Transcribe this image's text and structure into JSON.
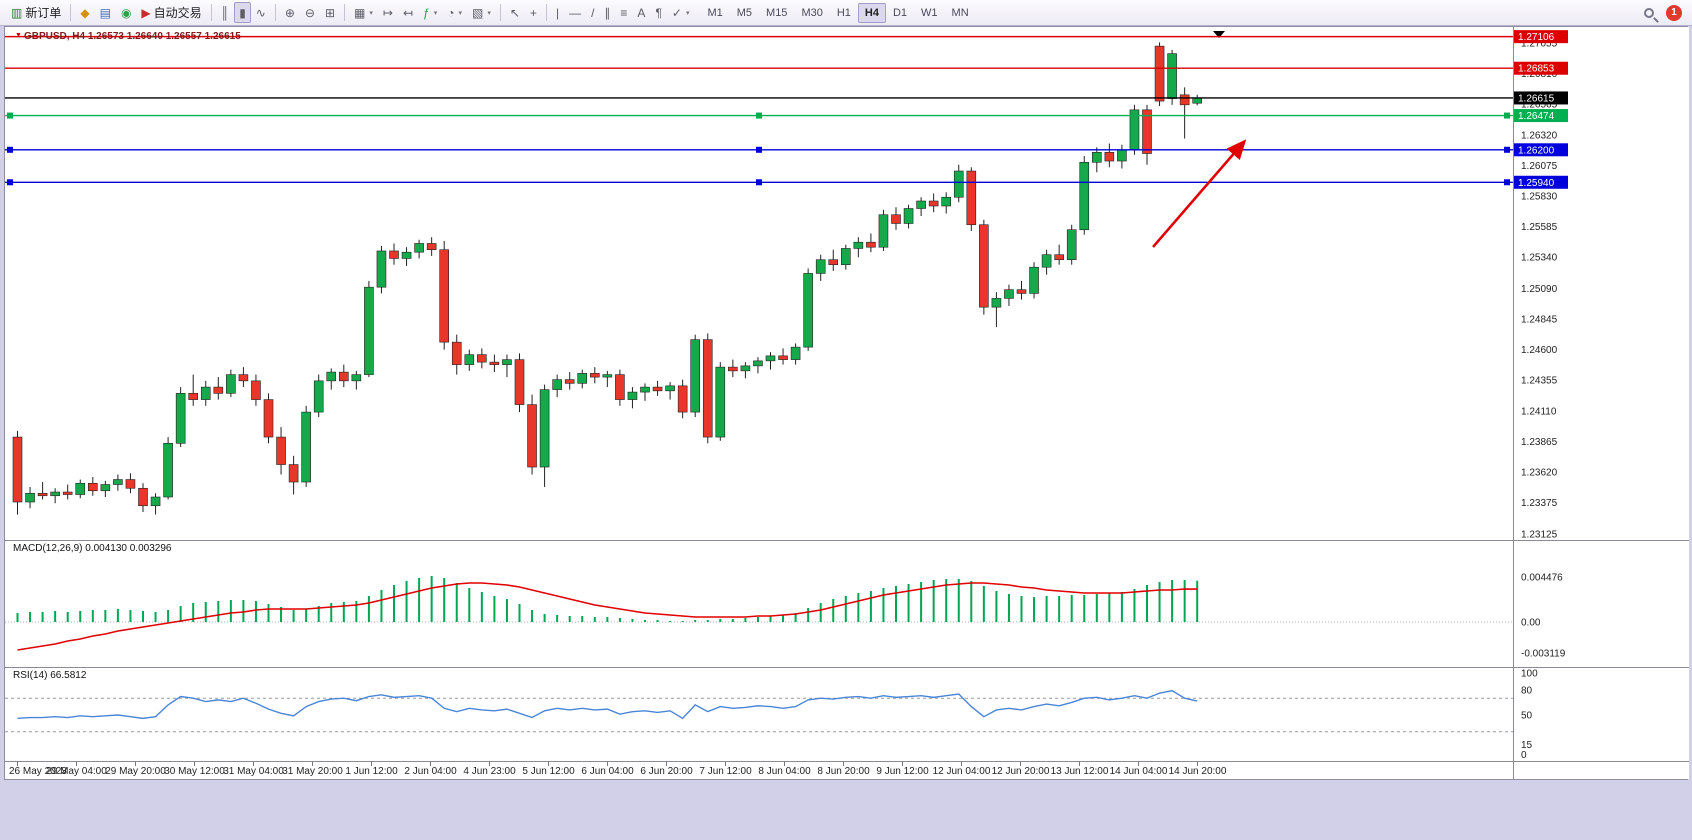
{
  "toolbar": {
    "groups": [
      {
        "buttons": [
          {
            "name": "new-order-button",
            "glyph": "▥",
            "glyph_color": "#2e7d32",
            "label": "新订单"
          }
        ]
      },
      {
        "buttons": [
          {
            "name": "charts-button",
            "glyph": "◆",
            "glyph_color": "#d4900f"
          },
          {
            "name": "profiles-button",
            "glyph": "▤",
            "glyph_color": "#3f6bb5"
          },
          {
            "name": "alerts-button",
            "glyph": "◉",
            "glyph_color": "#2f9e44"
          },
          {
            "name": "auto-trading-button",
            "glyph": "▶",
            "glyph_color": "#c92a2a",
            "label": "自动交易"
          }
        ]
      },
      {
        "buttons": [
          {
            "name": "bar-chart-button",
            "glyph": "║"
          },
          {
            "name": "candlestick-chart-button",
            "glyph": "▮",
            "active": true
          },
          {
            "name": "line-chart-button",
            "glyph": "∿"
          }
        ]
      },
      {
        "buttons": [
          {
            "name": "zoom-in-button",
            "glyph": "⊕"
          },
          {
            "name": "zoom-out-button",
            "glyph": "⊖"
          },
          {
            "name": "tile-windows-button",
            "glyph": "⊞"
          }
        ]
      },
      {
        "buttons": [
          {
            "name": "chart-layout-button",
            "glyph": "▦",
            "caret": true
          },
          {
            "name": "auto-scroll-button",
            "glyph": "↦"
          },
          {
            "name": "chart-shift-button",
            "glyph": "↤"
          },
          {
            "name": "indicators-button",
            "glyph": "ƒ",
            "glyph_color": "#2f9e44",
            "caret": true
          },
          {
            "name": "periods-button",
            "glyph": "◔",
            "caret": true
          },
          {
            "name": "templates-button",
            "glyph": "▧",
            "caret": true
          }
        ]
      },
      {
        "buttons": [
          {
            "name": "cursor-button",
            "glyph": "↖"
          },
          {
            "name": "crosshair-button",
            "glyph": "+"
          }
        ]
      },
      {
        "buttons": [
          {
            "name": "vertical-line-button",
            "glyph": "|"
          },
          {
            "name": "horizontal-line-button",
            "glyph": "—"
          },
          {
            "name": "trendline-button",
            "glyph": "/"
          },
          {
            "name": "channel-button",
            "glyph": "∥"
          },
          {
            "name": "fibonacci-button",
            "glyph": "≡"
          },
          {
            "name": "text-button",
            "glyph": "A"
          },
          {
            "name": "label-button",
            "glyph": "¶"
          },
          {
            "name": "shapes-button",
            "glyph": "✓",
            "caret": true
          }
        ]
      }
    ],
    "timeframes": [
      {
        "label": "M1"
      },
      {
        "label": "M5"
      },
      {
        "label": "M15"
      },
      {
        "label": "M30"
      },
      {
        "label": "H1"
      },
      {
        "label": "H4",
        "active": true
      },
      {
        "label": "D1"
      },
      {
        "label": "W1"
      },
      {
        "label": "MN"
      }
    ],
    "notification_count": "1"
  },
  "chart": {
    "symbol_title": "GBPUSD, H4 1.26573 1.26640 1.26557 1.26615",
    "macd_label": "MACD(12,26,9) 0.004130 0.003296",
    "rsi_label": "RSI(14) 66.5812"
  },
  "chart_data": {
    "type": "candlestick",
    "symbol": "GBPUSD",
    "timeframe": "H4",
    "ohlc_current": {
      "open": 1.26573,
      "high": 1.2664,
      "low": 1.26557,
      "close": 1.26615
    },
    "y_ticks": [
      "1.27055",
      "1.26810",
      "1.26565",
      "1.26320",
      "1.26075",
      "1.25830",
      "1.25585",
      "1.25340",
      "1.25090",
      "1.24845",
      "1.24600",
      "1.24355",
      "1.24110",
      "1.23865",
      "1.23620",
      "1.23375",
      "1.23125"
    ],
    "x_labels": [
      "26 May 2023",
      "29 May 04:00",
      "29 May 20:00",
      "30 May 12:00",
      "31 May 04:00",
      "31 May 20:00",
      "1 Jun 12:00",
      "2 Jun 04:00",
      "4 Jun 23:00",
      "5 Jun 12:00",
      "6 Jun 04:00",
      "6 Jun 20:00",
      "7 Jun 12:00",
      "8 Jun 04:00",
      "8 Jun 20:00",
      "9 Jun 12:00",
      "12 Jun 04:00",
      "12 Jun 20:00",
      "13 Jun 12:00",
      "14 Jun 04:00",
      "14 Jun 20:00"
    ],
    "hlines": [
      {
        "price": 1.27106,
        "color": "#dd0000",
        "label": "1.27106",
        "handles": false,
        "is_current": false
      },
      {
        "price": 1.26853,
        "color": "#dd0000",
        "label": "1.26853",
        "handles": false,
        "is_current": false
      },
      {
        "price": 1.26615,
        "color": "#000000",
        "label": "1.26615",
        "handles": false,
        "is_current": true
      },
      {
        "price": 1.26474,
        "color": "#00b050",
        "label": "1.26474",
        "handles": true,
        "is_current": false
      },
      {
        "price": 1.262,
        "color": "#0000dd",
        "label": "1.26200",
        "handles": true,
        "is_current": false
      },
      {
        "price": 1.2594,
        "color": "#0000dd",
        "label": "1.25940",
        "handles": true,
        "is_current": false
      }
    ],
    "candles": [
      [
        1.239,
        1.2395,
        1.2328,
        1.2338
      ],
      [
        1.2338,
        1.235,
        1.2333,
        1.2345
      ],
      [
        1.2345,
        1.2354,
        1.234,
        1.2343
      ],
      [
        1.2343,
        1.2349,
        1.2337,
        1.2346
      ],
      [
        1.2346,
        1.2352,
        1.234,
        1.2344
      ],
      [
        1.2344,
        1.2356,
        1.2341,
        1.2353
      ],
      [
        1.2353,
        1.2358,
        1.2343,
        1.2347
      ],
      [
        1.2347,
        1.2355,
        1.2342,
        1.2352
      ],
      [
        1.2352,
        1.236,
        1.2347,
        1.2356
      ],
      [
        1.2356,
        1.2361,
        1.2345,
        1.2349
      ],
      [
        1.2349,
        1.2353,
        1.233,
        1.2335
      ],
      [
        1.2335,
        1.2345,
        1.2328,
        1.2342
      ],
      [
        1.2342,
        1.239,
        1.234,
        1.2385
      ],
      [
        1.2385,
        1.243,
        1.2382,
        1.2425
      ],
      [
        1.2425,
        1.244,
        1.2415,
        1.242
      ],
      [
        1.242,
        1.2435,
        1.2415,
        1.243
      ],
      [
        1.243,
        1.2438,
        1.242,
        1.2425
      ],
      [
        1.2425,
        1.2444,
        1.2422,
        1.244
      ],
      [
        1.244,
        1.2446,
        1.243,
        1.2435
      ],
      [
        1.2435,
        1.244,
        1.2415,
        1.242
      ],
      [
        1.242,
        1.2425,
        1.2385,
        1.239
      ],
      [
        1.239,
        1.2398,
        1.236,
        1.2368
      ],
      [
        1.2368,
        1.2375,
        1.2344,
        1.2354
      ],
      [
        1.2354,
        1.2415,
        1.235,
        1.241
      ],
      [
        1.241,
        1.244,
        1.2406,
        1.2435
      ],
      [
        1.2435,
        1.2445,
        1.2428,
        1.2442
      ],
      [
        1.2442,
        1.2448,
        1.243,
        1.2435
      ],
      [
        1.2435,
        1.2443,
        1.2428,
        1.244
      ],
      [
        1.244,
        1.2515,
        1.2438,
        1.251
      ],
      [
        1.251,
        1.2543,
        1.2505,
        1.2539
      ],
      [
        1.2539,
        1.2545,
        1.2528,
        1.2533
      ],
      [
        1.2533,
        1.2542,
        1.2527,
        1.2538
      ],
      [
        1.2538,
        1.2548,
        1.2533,
        1.2545
      ],
      [
        1.2545,
        1.255,
        1.2535,
        1.254
      ],
      [
        1.254,
        1.2547,
        1.246,
        1.2466
      ],
      [
        1.2466,
        1.2472,
        1.244,
        1.2448
      ],
      [
        1.2448,
        1.246,
        1.2443,
        1.2456
      ],
      [
        1.2456,
        1.2461,
        1.2445,
        1.245
      ],
      [
        1.245,
        1.2456,
        1.2442,
        1.2448
      ],
      [
        1.2448,
        1.2456,
        1.2438,
        1.2452
      ],
      [
        1.2452,
        1.2457,
        1.241,
        1.2416
      ],
      [
        1.2416,
        1.2424,
        1.236,
        1.2366
      ],
      [
        1.2366,
        1.2432,
        1.235,
        1.2428
      ],
      [
        1.2428,
        1.244,
        1.2422,
        1.2436
      ],
      [
        1.2436,
        1.2442,
        1.2428,
        1.2433
      ],
      [
        1.2433,
        1.2444,
        1.2429,
        1.2441
      ],
      [
        1.2441,
        1.2446,
        1.2433,
        1.2438
      ],
      [
        1.2438,
        1.2443,
        1.243,
        1.244
      ],
      [
        1.244,
        1.2444,
        1.2415,
        1.242
      ],
      [
        1.242,
        1.243,
        1.2413,
        1.2426
      ],
      [
        1.2426,
        1.2433,
        1.2419,
        1.243
      ],
      [
        1.243,
        1.2435,
        1.2423,
        1.2427
      ],
      [
        1.2427,
        1.2434,
        1.242,
        1.2431
      ],
      [
        1.2431,
        1.2436,
        1.2405,
        1.241
      ],
      [
        1.241,
        1.2472,
        1.2406,
        1.2468
      ],
      [
        1.2468,
        1.2473,
        1.2385,
        1.239
      ],
      [
        1.239,
        1.245,
        1.2387,
        1.2446
      ],
      [
        1.2446,
        1.2452,
        1.2438,
        1.2443
      ],
      [
        1.2443,
        1.245,
        1.2437,
        1.2447
      ],
      [
        1.2447,
        1.2454,
        1.2441,
        1.2451
      ],
      [
        1.2451,
        1.2458,
        1.2444,
        1.2455
      ],
      [
        1.2455,
        1.2461,
        1.2448,
        1.2452
      ],
      [
        1.2452,
        1.2465,
        1.2448,
        1.2462
      ],
      [
        1.2462,
        1.2525,
        1.2459,
        1.2521
      ],
      [
        1.2521,
        1.2536,
        1.2515,
        1.2532
      ],
      [
        1.2532,
        1.254,
        1.2523,
        1.2528
      ],
      [
        1.2528,
        1.2544,
        1.2524,
        1.2541
      ],
      [
        1.2541,
        1.255,
        1.2534,
        1.2546
      ],
      [
        1.2546,
        1.2553,
        1.2538,
        1.2542
      ],
      [
        1.2542,
        1.2572,
        1.2539,
        1.2568
      ],
      [
        1.2568,
        1.2574,
        1.2556,
        1.2561
      ],
      [
        1.2561,
        1.2576,
        1.2557,
        1.2573
      ],
      [
        1.2573,
        1.2582,
        1.2567,
        1.2579
      ],
      [
        1.2579,
        1.2585,
        1.257,
        1.2575
      ],
      [
        1.2575,
        1.2586,
        1.2569,
        1.2582
      ],
      [
        1.2582,
        1.2608,
        1.2578,
        1.2603
      ],
      [
        1.2603,
        1.2606,
        1.2555,
        1.256
      ],
      [
        1.256,
        1.2564,
        1.2488,
        1.2494
      ],
      [
        1.2494,
        1.2506,
        1.2478,
        1.2501
      ],
      [
        1.2501,
        1.2512,
        1.2495,
        1.2508
      ],
      [
        1.2508,
        1.2515,
        1.25,
        1.2505
      ],
      [
        1.2505,
        1.253,
        1.2501,
        1.2526
      ],
      [
        1.2526,
        1.254,
        1.252,
        1.2536
      ],
      [
        1.2536,
        1.2544,
        1.2528,
        1.2532
      ],
      [
        1.2532,
        1.256,
        1.2528,
        1.2556
      ],
      [
        1.2556,
        1.2615,
        1.2552,
        1.261
      ],
      [
        1.261,
        1.2622,
        1.2602,
        1.2618
      ],
      [
        1.2618,
        1.2625,
        1.2606,
        1.2611
      ],
      [
        1.2611,
        1.2624,
        1.2605,
        1.262
      ],
      [
        1.262,
        1.2656,
        1.2616,
        1.2652
      ],
      [
        1.2652,
        1.2656,
        1.2608,
        1.2617
      ],
      [
        1.2703,
        1.2706,
        1.2655,
        1.2659
      ],
      [
        1.2661,
        1.27,
        1.2656,
        1.2697
      ],
      [
        1.2664,
        1.267,
        1.2629,
        1.2656
      ],
      [
        1.26573,
        1.2664,
        1.26557,
        1.26615
      ]
    ],
    "macd": {
      "label": "MACD(12,26,9) 0.004130 0.003296",
      "y_ticks": [
        0.004476,
        0,
        -0.003119
      ],
      "y_tick_labels": [
        "0.004476",
        "0.00",
        "-0.003119"
      ],
      "histogram": [
        0.0009,
        0.001,
        0.001,
        0.0011,
        0.001,
        0.0011,
        0.0012,
        0.0012,
        0.0013,
        0.0012,
        0.0011,
        0.001,
        0.0012,
        0.0016,
        0.0019,
        0.002,
        0.0021,
        0.0022,
        0.0022,
        0.0021,
        0.0018,
        0.0015,
        0.0012,
        0.0013,
        0.0016,
        0.0019,
        0.002,
        0.0021,
        0.0026,
        0.0032,
        0.0037,
        0.0041,
        0.0044,
        0.0046,
        0.0044,
        0.0039,
        0.0034,
        0.003,
        0.0026,
        0.0023,
        0.0018,
        0.0012,
        0.0008,
        0.0007,
        0.0006,
        0.0006,
        0.0005,
        0.0005,
        0.0004,
        0.0003,
        0.0002,
        0.0002,
        0.0001,
        0.0001,
        0.0002,
        0.0002,
        0.0003,
        0.0003,
        0.0004,
        0.0005,
        0.0006,
        0.0007,
        0.0009,
        0.0014,
        0.0019,
        0.0023,
        0.0026,
        0.0029,
        0.0031,
        0.0034,
        0.0036,
        0.0038,
        0.004,
        0.0042,
        0.0043,
        0.0043,
        0.0041,
        0.0036,
        0.0031,
        0.0028,
        0.0026,
        0.0025,
        0.0026,
        0.0026,
        0.0027,
        0.0027,
        0.0028,
        0.0029,
        0.003,
        0.0033,
        0.0037,
        0.004,
        0.0042,
        0.0042,
        0.00413
      ],
      "signal": [
        -0.0028,
        -0.0026,
        -0.0024,
        -0.0022,
        -0.0019,
        -0.0017,
        -0.0014,
        -0.0012,
        -0.0009,
        -0.0007,
        -0.0005,
        -0.0003,
        -0.0001,
        0.0001,
        0.0003,
        0.0005,
        0.0007,
        0.0009,
        0.001,
        0.0012,
        0.0013,
        0.0013,
        0.0013,
        0.0013,
        0.0014,
        0.0015,
        0.0016,
        0.0017,
        0.0019,
        0.0022,
        0.0025,
        0.0028,
        0.0031,
        0.0034,
        0.0036,
        0.0038,
        0.0039,
        0.0039,
        0.0038,
        0.0037,
        0.0035,
        0.0032,
        0.0029,
        0.0026,
        0.0023,
        0.002,
        0.0017,
        0.0015,
        0.0013,
        0.0011,
        0.0009,
        0.0008,
        0.0007,
        0.0006,
        0.0005,
        0.0005,
        0.0005,
        0.0005,
        0.0005,
        0.0006,
        0.0006,
        0.0007,
        0.0008,
        0.001,
        0.0012,
        0.0015,
        0.0018,
        0.0021,
        0.0024,
        0.0027,
        0.0029,
        0.0031,
        0.0033,
        0.0035,
        0.0037,
        0.0038,
        0.0039,
        0.0039,
        0.0038,
        0.0037,
        0.0035,
        0.0034,
        0.0032,
        0.0031,
        0.003,
        0.0029,
        0.0029,
        0.0029,
        0.0029,
        0.003,
        0.0031,
        0.0032,
        0.0032,
        0.0033,
        0.003296
      ]
    },
    "rsi": {
      "label": "RSI(14) 66.5812",
      "y_tick_values": [
        100,
        80,
        50,
        15,
        0
      ],
      "y_tick_labels": [
        "100",
        "80",
        "50",
        "15",
        "0"
      ],
      "levels": [
        70,
        30
      ],
      "values": [
        46,
        47,
        47,
        48,
        47,
        49,
        48,
        49,
        50,
        48,
        46,
        48,
        62,
        72,
        70,
        66,
        68,
        66,
        70,
        64,
        57,
        52,
        49,
        60,
        66,
        69,
        70,
        67,
        72,
        74,
        71,
        72,
        73,
        70,
        58,
        54,
        58,
        56,
        55,
        57,
        52,
        47,
        55,
        58,
        56,
        58,
        56,
        57,
        51,
        54,
        55,
        53,
        55,
        46,
        62,
        54,
        60,
        58,
        59,
        61,
        60,
        58,
        60,
        68,
        70,
        69,
        71,
        72,
        70,
        73,
        71,
        72,
        73,
        71,
        73,
        75,
        60,
        48,
        56,
        58,
        56,
        60,
        63,
        61,
        65,
        70,
        71,
        68,
        70,
        73,
        70,
        76,
        79,
        70,
        66.5812
      ]
    },
    "annotation_arrow": {
      "from": [
        1148,
        220
      ],
      "to": [
        1238,
        116
      ],
      "color": "#e00000"
    },
    "colors": {
      "bull": "#15a94c",
      "bear": "#e8362a",
      "wick": "#222222",
      "macd_hist": "#00a651",
      "macd_signal": "#e00000",
      "rsi_line": "#4a86d8"
    }
  }
}
